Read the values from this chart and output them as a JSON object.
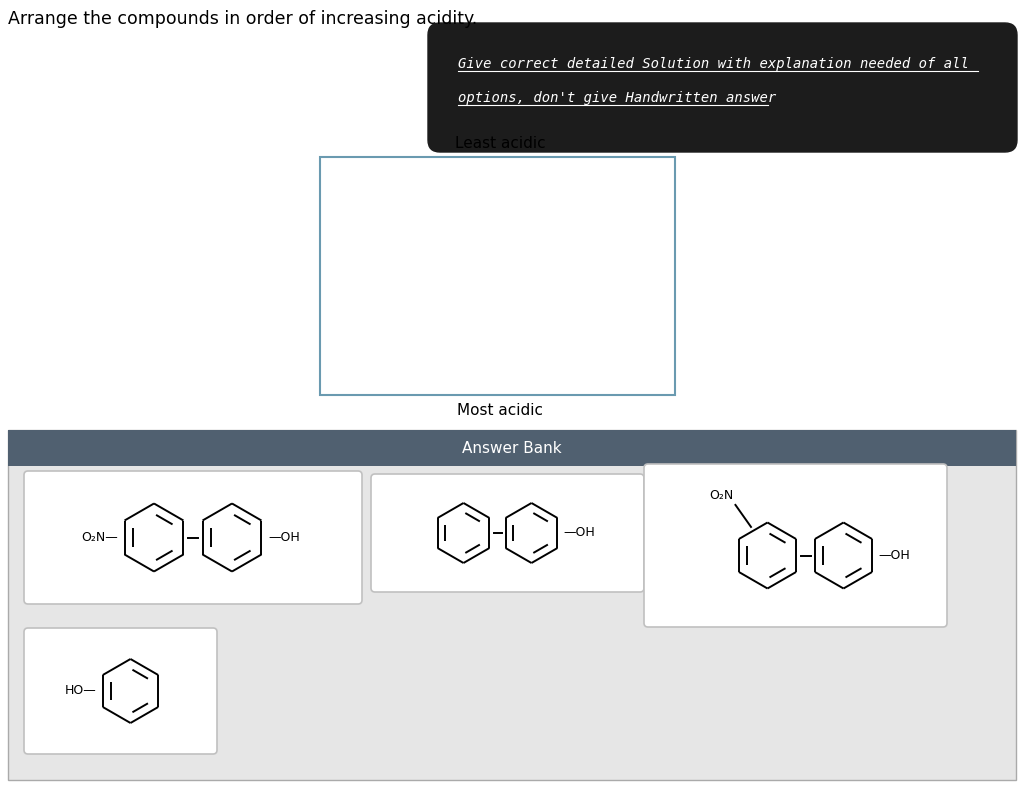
{
  "title": "Arrange the compounds in order of increasing acidity.",
  "black_box_line1": "Give correct detailed Solution with explanation needed of all",
  "black_box_line2": "options, don't give Handwritten answer",
  "least_acidic_label": "Least acidic",
  "most_acidic_label": "Most acidic",
  "answer_bank_label": "Answer Bank",
  "bg_color": "#ffffff",
  "answer_bank_header_color": "#506070",
  "answer_bank_bg_color": "#e6e6e6",
  "black_box_bg": "#1c1c1c",
  "black_box_text_color": "#ffffff",
  "drop_box_border_color": "#6a9ab0",
  "drop_box_bg_color": "#ffffff",
  "card_bg": "#f5f5f5",
  "card_border": "#cccccc",
  "ring_r": 32,
  "lw": 1.4
}
